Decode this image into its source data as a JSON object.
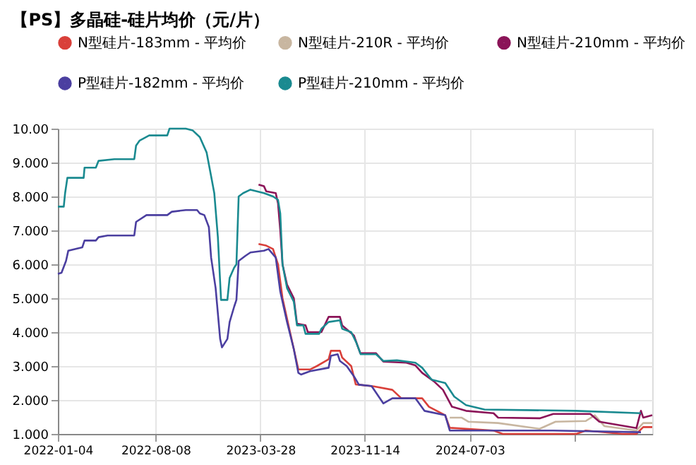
{
  "chart_data": {
    "type": "line",
    "title": "【PS】多晶硅-硅片均价（元/片）",
    "xlim": [
      "2022-01-04",
      "2025-08-11"
    ],
    "xticks": [
      {
        "value": "2022-01-04",
        "label": "2022-01-04"
      },
      {
        "value": "2022-08-08",
        "label": "2022-08-08"
      },
      {
        "value": "2023-03-28",
        "label": "2023-03-28"
      },
      {
        "value": "2023-11-14",
        "label": "2023-11-14"
      },
      {
        "value": "2024-07-03",
        "label": "2024-07-03"
      },
      {
        "value": "2025-02-21",
        "label": null
      }
    ],
    "ylim": [
      1,
      10
    ],
    "yticks": [
      {
        "value": 1,
        "label": "1.000"
      },
      {
        "value": 2,
        "label": "2.000"
      },
      {
        "value": 3,
        "label": "3.000"
      },
      {
        "value": 4,
        "label": "4.000"
      },
      {
        "value": 5,
        "label": "5.000"
      },
      {
        "value": 6,
        "label": "6.000"
      },
      {
        "value": 7,
        "label": "7.000"
      },
      {
        "value": 8,
        "label": "8.000"
      },
      {
        "value": 9,
        "label": "9.000"
      },
      {
        "value": 10,
        "label": "10.00"
      }
    ],
    "grid": true,
    "legend": "top",
    "marker": "none",
    "line_style": "solid",
    "series": [
      {
        "name": "N型硅片-183mm - 平均价",
        "color": "#d9403a",
        "x": [
          "2023-03-24",
          "2023-04-10",
          "2023-04-25",
          "2023-05-06",
          "2023-05-16",
          "2023-05-31",
          "2023-06-15",
          "2023-06-20",
          "2023-07-16",
          "2023-07-31",
          "2023-08-26",
          "2023-08-31",
          "2023-09-20",
          "2023-09-25",
          "2023-10-15",
          "2023-10-25",
          "2023-12-04",
          "2024-01-14",
          "2024-02-03",
          "2024-03-20",
          "2024-04-04",
          "2024-05-10",
          "2024-05-20",
          "2024-08-25",
          "2024-09-14",
          "2025-02-24",
          "2025-03-17",
          "2025-06-06",
          "2025-07-07",
          "2025-07-22",
          "2025-08-11"
        ],
        "values": [
          6.6,
          6.55,
          6.45,
          6.0,
          5.0,
          4.1,
          3.2,
          2.9,
          2.9,
          3.0,
          3.2,
          3.45,
          3.45,
          3.25,
          3.0,
          2.46,
          2.4,
          2.3,
          2.05,
          2.05,
          1.8,
          1.55,
          1.18,
          1.1,
          1.0,
          1.0,
          1.1,
          1.0,
          1.0,
          1.2,
          1.2
        ]
      },
      {
        "name": "N型硅片-210R - 平均价",
        "color": "#c8b6a0",
        "x": [
          "2024-05-20",
          "2024-06-15",
          "2024-06-30",
          "2024-09-04",
          "2024-12-05",
          "2025-01-09",
          "2025-03-17",
          "2025-04-06",
          "2025-04-27",
          "2025-07-07",
          "2025-07-22",
          "2025-08-11"
        ],
        "values": [
          1.48,
          1.48,
          1.36,
          1.32,
          1.15,
          1.36,
          1.38,
          1.55,
          1.23,
          1.1,
          1.32,
          1.32
        ]
      },
      {
        "name": "N型硅片-210mm - 平均价",
        "color": "#8b1458",
        "x": [
          "2023-03-24",
          "2023-04-05",
          "2023-04-10",
          "2023-05-01",
          "2023-05-06",
          "2023-05-11",
          "2023-05-16",
          "2023-05-26",
          "2023-06-10",
          "2023-06-17",
          "2023-07-06",
          "2023-07-11",
          "2023-08-10",
          "2023-08-26",
          "2023-09-20",
          "2023-09-25",
          "2023-10-21",
          "2023-11-04",
          "2023-12-09",
          "2023-12-25",
          "2024-02-14",
          "2024-03-05",
          "2024-03-20",
          "2024-04-15",
          "2024-05-05",
          "2024-05-25",
          "2024-06-25",
          "2024-08-25",
          "2024-09-04",
          "2024-12-05",
          "2025-01-04",
          "2025-03-27",
          "2025-04-16",
          "2025-07-07",
          "2025-07-17",
          "2025-07-22",
          "2025-08-11"
        ],
        "values": [
          8.35,
          8.3,
          8.15,
          8.1,
          7.8,
          7.0,
          6.0,
          5.4,
          5.0,
          4.25,
          4.2,
          4.0,
          4.0,
          4.45,
          4.45,
          4.2,
          3.9,
          3.38,
          3.38,
          3.13,
          3.1,
          3.02,
          2.8,
          2.55,
          2.3,
          1.8,
          1.68,
          1.61,
          1.48,
          1.46,
          1.59,
          1.59,
          1.36,
          1.17,
          1.68,
          1.48,
          1.55
        ]
      },
      {
        "name": "P型硅片-182mm - 平均价",
        "color": "#4b3fa0",
        "x": [
          "2022-01-04",
          "2022-01-12",
          "2022-01-22",
          "2022-01-27",
          "2022-02-27",
          "2022-03-04",
          "2022-03-29",
          "2022-04-04",
          "2022-04-24",
          "2022-06-22",
          "2022-06-26",
          "2022-07-19",
          "2022-09-03",
          "2022-09-13",
          "2022-10-14",
          "2022-11-08",
          "2022-11-14",
          "2022-11-24",
          "2022-12-04",
          "2022-12-09",
          "2022-12-19",
          "2022-12-29",
          "2023-01-02",
          "2023-01-14",
          "2023-01-19",
          "2023-01-29",
          "2023-02-03",
          "2023-02-08",
          "2023-02-23",
          "2023-03-06",
          "2023-04-05",
          "2023-04-15",
          "2023-05-01",
          "2023-05-11",
          "2023-05-26",
          "2023-06-10",
          "2023-06-20",
          "2023-06-26",
          "2023-07-16",
          "2023-08-26",
          "2023-08-31",
          "2023-09-15",
          "2023-09-20",
          "2023-10-05",
          "2023-10-21",
          "2023-11-01",
          "2023-11-29",
          "2023-12-25",
          "2024-01-14",
          "2024-03-05",
          "2024-03-25",
          "2024-05-10",
          "2024-05-20",
          "2025-01-04",
          "2025-07-17"
        ],
        "values": [
          5.72,
          5.75,
          6.1,
          6.4,
          6.5,
          6.7,
          6.7,
          6.8,
          6.85,
          6.85,
          7.25,
          7.45,
          7.45,
          7.55,
          7.6,
          7.6,
          7.5,
          7.45,
          7.1,
          6.2,
          5.3,
          3.8,
          3.55,
          3.8,
          4.3,
          4.75,
          4.95,
          6.1,
          6.25,
          6.35,
          6.4,
          6.45,
          6.2,
          5.2,
          4.3,
          3.5,
          2.8,
          2.75,
          2.85,
          2.95,
          3.3,
          3.35,
          3.15,
          3.0,
          2.7,
          2.45,
          2.41,
          1.9,
          2.05,
          2.05,
          1.68,
          1.55,
          1.1,
          1.1,
          1.05
        ]
      },
      {
        "name": "P型硅片-210mm - 平均价",
        "color": "#1a8a90",
        "x": [
          "2022-01-04",
          "2022-01-17",
          "2022-01-20",
          "2022-01-25",
          "2022-03-02",
          "2022-03-04",
          "2022-03-29",
          "2022-04-04",
          "2022-05-09",
          "2022-06-22",
          "2022-06-26",
          "2022-07-04",
          "2022-07-25",
          "2022-09-03",
          "2022-09-08",
          "2022-10-14",
          "2022-10-29",
          "2022-11-14",
          "2022-11-29",
          "2022-12-09",
          "2022-12-16",
          "2022-12-24",
          "2022-12-31",
          "2023-01-14",
          "2023-01-19",
          "2023-01-29",
          "2023-02-03",
          "2023-02-08",
          "2023-02-18",
          "2023-03-06",
          "2023-04-05",
          "2023-04-25",
          "2023-05-06",
          "2023-05-11",
          "2023-05-16",
          "2023-05-26",
          "2023-06-10",
          "2023-06-17",
          "2023-07-01",
          "2023-07-06",
          "2023-08-05",
          "2023-08-10",
          "2023-08-26",
          "2023-09-20",
          "2023-09-25",
          "2023-10-15",
          "2023-10-26",
          "2023-11-05",
          "2023-12-09",
          "2023-12-25",
          "2024-01-24",
          "2024-03-05",
          "2024-03-20",
          "2024-04-10",
          "2024-05-10",
          "2024-05-30",
          "2024-06-25",
          "2024-08-05",
          "2025-02-24",
          "2025-07-17"
        ],
        "values": [
          7.7,
          7.7,
          8.1,
          8.55,
          8.55,
          8.85,
          8.85,
          9.05,
          9.1,
          9.1,
          9.5,
          9.65,
          9.8,
          9.8,
          10.0,
          10.0,
          9.95,
          9.75,
          9.3,
          8.6,
          8.1,
          6.8,
          4.95,
          4.95,
          5.6,
          5.9,
          6.0,
          8.0,
          8.1,
          8.2,
          8.1,
          8.0,
          7.9,
          7.5,
          6.0,
          5.3,
          4.9,
          4.2,
          4.2,
          3.95,
          3.95,
          4.1,
          4.3,
          4.35,
          4.1,
          4.0,
          3.7,
          3.35,
          3.35,
          3.15,
          3.17,
          3.1,
          2.95,
          2.6,
          2.5,
          2.1,
          1.85,
          1.72,
          1.68,
          1.61
        ]
      }
    ]
  }
}
